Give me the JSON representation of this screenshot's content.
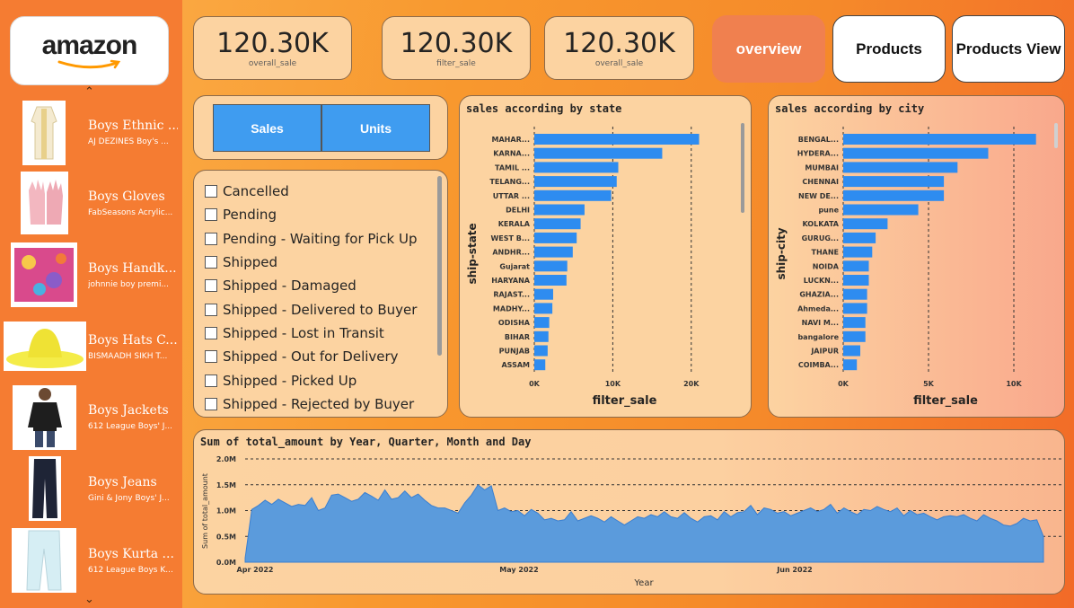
{
  "brand": {
    "logo_text": "amazon"
  },
  "products": [
    {
      "name": "Boys Ethnic ...",
      "desc": "AJ DEZINES Boy's ...",
      "icon": "ethnic-wear-thumbnail"
    },
    {
      "name": "Boys Gloves",
      "desc": "FabSeasons Acrylic...",
      "icon": "gloves-thumbnail"
    },
    {
      "name": "Boys Handk...",
      "desc": "johnnie boy premi...",
      "icon": "handkerchief-thumbnail"
    },
    {
      "name": "Boys Hats C...",
      "desc": "BISMAADH SIKH T...",
      "icon": "hat-thumbnail"
    },
    {
      "name": "Boys Jackets",
      "desc": "612 League Boys' J...",
      "icon": "jacket-thumbnail"
    },
    {
      "name": "Boys Jeans",
      "desc": "Gini & Jony Boys' J...",
      "icon": "jeans-thumbnail"
    },
    {
      "name": "Boys Kurta ...",
      "desc": "612 League Boys K...",
      "icon": "kurta-thumbnail"
    }
  ],
  "kpis": [
    {
      "value": "120.30K",
      "label": "overall_sale"
    },
    {
      "value": "120.30K",
      "label": "filter_sale"
    },
    {
      "value": "120.30K",
      "label": "overall_sale"
    }
  ],
  "nav": {
    "overview": "overview",
    "products": "Products",
    "products_view": "Products View"
  },
  "toggle": {
    "sales": "Sales",
    "units": "Units"
  },
  "statuses": [
    "Cancelled",
    "Pending",
    "Pending - Waiting for Pick Up",
    "Shipped",
    "Shipped - Damaged",
    "Shipped - Delivered to Buyer",
    "Shipped - Lost in Transit",
    "Shipped - Out for Delivery",
    "Shipped - Picked Up",
    "Shipped - Rejected by Buyer"
  ],
  "colors": {
    "bar": "#2e8cf0",
    "area": "#5b9bdc",
    "accent": "#f0804f"
  },
  "chart_data": [
    {
      "type": "bar",
      "orientation": "horizontal",
      "title": "sales according by state",
      "xlabel": "filter_sale",
      "ylabel": "ship-state",
      "xlim": [
        0,
        23000
      ],
      "xticks": [
        "0K",
        "10K",
        "20K"
      ],
      "categories": [
        "MAHAR...",
        "KARNA...",
        "TAMIL ...",
        "TELANG...",
        "UTTAR ...",
        "DELHI",
        "KERALA",
        "WEST B...",
        "ANDHR...",
        "Gujarat",
        "HARYANA",
        "RAJAST...",
        "MADHY...",
        "ODISHA",
        "BIHAR",
        "PUNJAB",
        "ASSAM"
      ],
      "values": [
        21000,
        16300,
        10700,
        10500,
        9800,
        6400,
        5900,
        5400,
        4900,
        4200,
        4100,
        2400,
        2300,
        1900,
        1800,
        1700,
        1400
      ]
    },
    {
      "type": "bar",
      "orientation": "horizontal",
      "title": "sales according by city",
      "xlabel": "filter_sale",
      "ylabel": "ship-city",
      "xlim": [
        0,
        12000
      ],
      "xticks": [
        "0K",
        "5K",
        "10K"
      ],
      "categories": [
        "BENGAL...",
        "HYDERA...",
        "MUMBAI",
        "CHENNAI",
        "NEW DE...",
        "pune",
        "KOLKATA",
        "GURUG...",
        "THANE",
        "NOIDA",
        "LUCKN...",
        "GHAZIA...",
        "Ahmeda...",
        "NAVI M...",
        "bangalore",
        "JAIPUR",
        "COIMBA..."
      ],
      "values": [
        11300,
        8500,
        6700,
        5900,
        5900,
        4400,
        2600,
        1900,
        1700,
        1500,
        1500,
        1400,
        1400,
        1300,
        1300,
        1000,
        800
      ]
    },
    {
      "type": "area",
      "title": "Sum of total_amount by Year, Quarter, Month and Day",
      "xlabel": "Year",
      "ylabel": "Sum of total_amount",
      "ylim": [
        0,
        2000000
      ],
      "yticks": [
        "0.0M",
        "0.5M",
        "1.0M",
        "1.5M",
        "2.0M"
      ],
      "xticks": [
        "Apr 2022",
        "May 2022",
        "Jun 2022"
      ],
      "values": [
        0.08,
        1.02,
        1.1,
        1.2,
        1.12,
        1.22,
        1.15,
        1.08,
        1.12,
        1.1,
        1.25,
        1.0,
        1.05,
        1.3,
        1.32,
        1.25,
        1.18,
        1.22,
        1.35,
        1.28,
        1.2,
        1.4,
        1.22,
        1.25,
        1.38,
        1.25,
        1.32,
        1.2,
        1.1,
        1.05,
        1.05,
        1.0,
        0.95,
        1.15,
        1.3,
        1.5,
        1.4,
        1.48,
        1.0,
        1.05,
        0.98,
        1.0,
        0.9,
        1.02,
        0.95,
        0.82,
        0.85,
        0.8,
        0.82,
        0.98,
        0.8,
        0.85,
        0.9,
        0.85,
        0.78,
        0.88,
        0.8,
        0.72,
        0.8,
        0.88,
        0.85,
        0.92,
        0.88,
        0.98,
        0.88,
        0.85,
        0.96,
        0.85,
        0.78,
        0.88,
        0.9,
        0.82,
        0.98,
        0.88,
        0.96,
        0.98,
        1.1,
        0.92,
        1.05,
        1.02,
        0.95,
        0.98,
        0.9,
        0.95,
        1.0,
        1.05,
        0.98,
        1.02,
        1.12,
        0.95,
        1.05,
        0.98,
        0.92,
        1.02,
        1.0,
        1.08,
        1.02,
        0.98,
        1.05,
        0.9,
        1.0,
        0.92,
        0.95,
        0.88,
        0.82,
        0.88,
        0.9,
        0.88,
        0.92,
        0.85,
        0.8,
        0.92,
        0.85,
        0.8,
        0.72,
        0.7,
        0.75,
        0.85,
        0.8,
        0.82,
        0.5
      ]
    }
  ]
}
